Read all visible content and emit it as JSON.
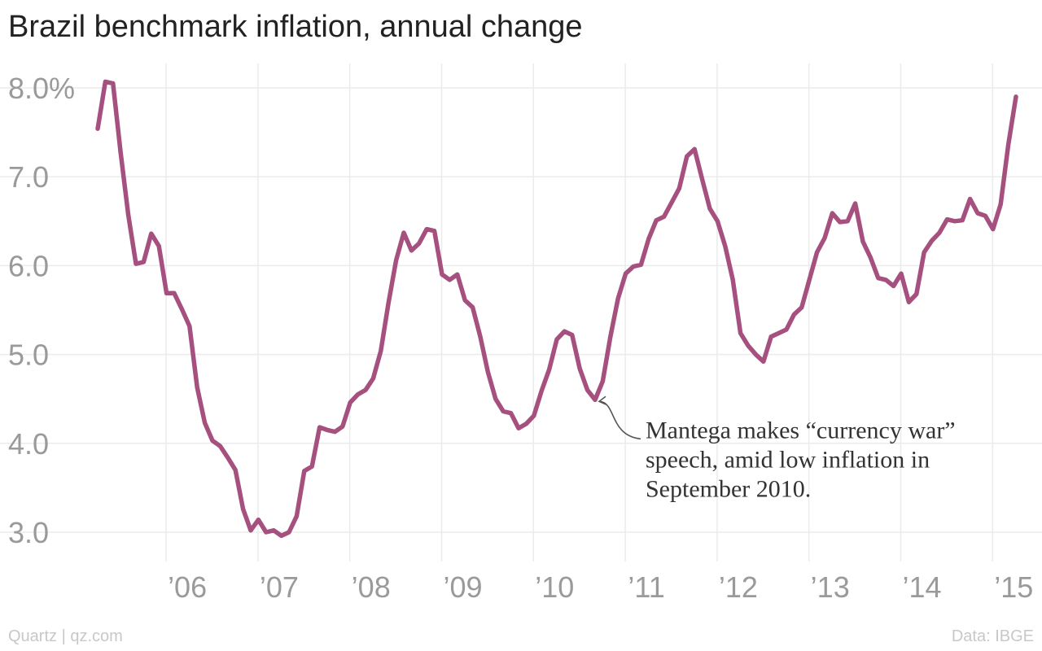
{
  "chart_data": {
    "type": "line",
    "title": "Brazil benchmark inflation, annual change",
    "xlabel": "",
    "ylabel": "",
    "ylim": [
      2.6,
      8.3
    ],
    "y_ticks": [
      3.0,
      4.0,
      5.0,
      6.0,
      7.0,
      8.0
    ],
    "y_tick_labels": [
      "3.0",
      "4.0",
      "5.0",
      "6.0",
      "7.0",
      "8.0%"
    ],
    "x_tick_labels": [
      "’06",
      "’07",
      "’08",
      "’09",
      "’10",
      "’11",
      "’12",
      "’13",
      "’14",
      "’15"
    ],
    "x_start": "2005-04",
    "x_end": "2015-03",
    "grid": true,
    "series": [
      {
        "color": "#a5507f",
        "values": [
          7.54,
          8.07,
          8.05,
          7.27,
          6.57,
          6.02,
          6.04,
          6.36,
          6.22,
          5.69,
          5.69,
          5.51,
          5.32,
          4.63,
          4.23,
          4.03,
          3.97,
          3.84,
          3.7,
          3.26,
          3.02,
          3.14,
          3.0,
          3.02,
          2.96,
          3.0,
          3.18,
          3.69,
          3.74,
          4.18,
          4.15,
          4.13,
          4.19,
          4.46,
          4.55,
          4.6,
          4.73,
          5.04,
          5.58,
          6.06,
          6.37,
          6.17,
          6.25,
          6.41,
          6.39,
          5.9,
          5.84,
          5.9,
          5.61,
          5.53,
          5.2,
          4.8,
          4.5,
          4.36,
          4.34,
          4.17,
          4.22,
          4.31,
          4.59,
          4.83,
          5.17,
          5.26,
          5.22,
          4.84,
          4.6,
          4.49,
          4.7,
          5.2,
          5.63,
          5.91,
          5.99,
          6.01,
          6.3,
          6.51,
          6.55,
          6.71,
          6.87,
          7.23,
          7.31,
          6.97,
          6.64,
          6.5,
          6.22,
          5.84,
          5.24,
          5.1,
          5.0,
          4.92,
          5.2,
          5.24,
          5.28,
          5.45,
          5.53,
          5.84,
          6.15,
          6.31,
          6.59,
          6.49,
          6.5,
          6.7,
          6.27,
          6.09,
          5.86,
          5.84,
          5.77,
          5.91,
          5.59,
          5.68,
          6.15,
          6.28,
          6.37,
          6.52,
          6.5,
          6.51,
          6.75,
          6.59,
          6.56,
          6.41,
          6.69,
          7.36,
          7.9
        ]
      }
    ],
    "annotation": {
      "lines": [
        "Mantega makes “currency war”",
        "speech, amid low inflation in",
        "September 2010."
      ],
      "x": "2010-09"
    }
  },
  "footer": {
    "source_left": "Quartz | qz.com",
    "source_right": "Data: IBGE"
  }
}
